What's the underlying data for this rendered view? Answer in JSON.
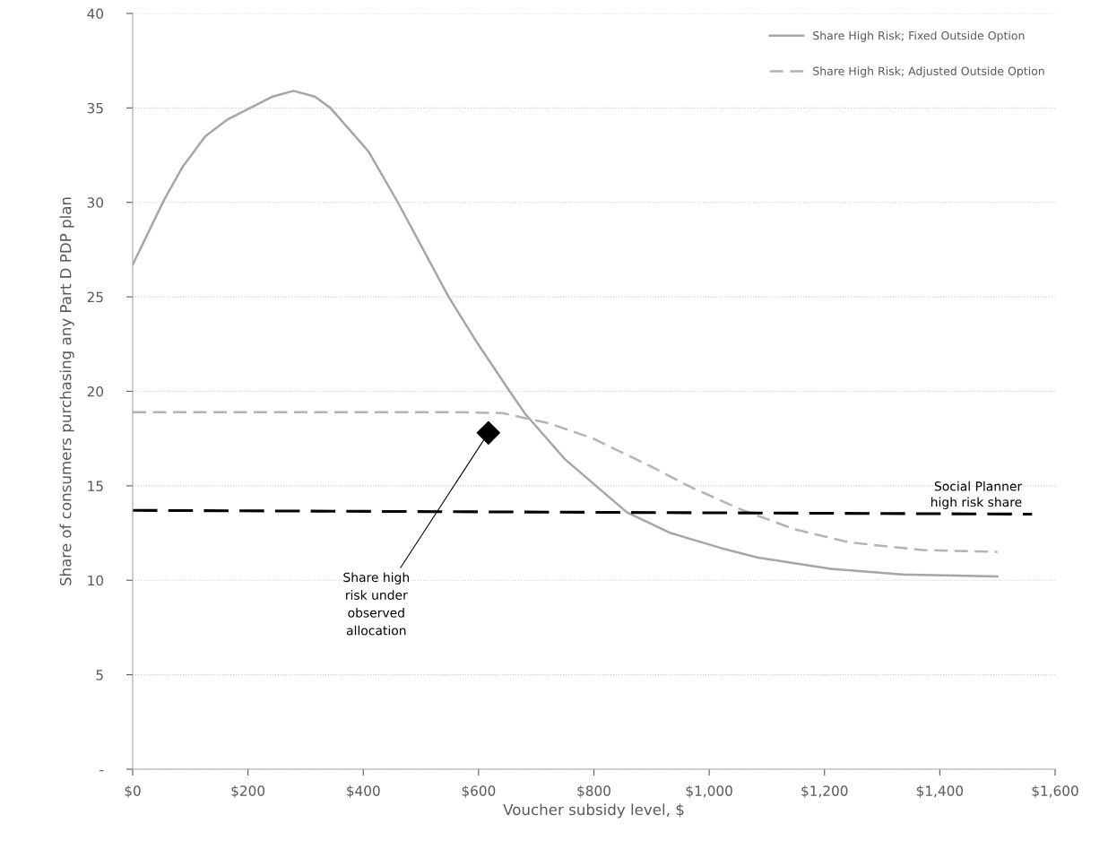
{
  "chart_data": {
    "type": "line",
    "xlabel": "Voucher subsidy level, $",
    "ylabel": "Share of consumers purchasing any Part D PDP plan",
    "xlim": [
      0,
      1600
    ],
    "xticks": [
      {
        "value": 0,
        "label": "$0"
      },
      {
        "value": 200,
        "label": "$200"
      },
      {
        "value": 400,
        "label": "$400"
      },
      {
        "value": 600,
        "label": "$600"
      },
      {
        "value": 800,
        "label": "$800"
      },
      {
        "value": 1000,
        "label": "$1,000"
      },
      {
        "value": 1200,
        "label": "$1,200"
      },
      {
        "value": 1400,
        "label": "$1,400"
      },
      {
        "value": 1600,
        "label": "$1,600"
      }
    ],
    "ylim": [
      0,
      40
    ],
    "yticks": [
      {
        "value": 0,
        "label": "-"
      },
      5,
      10,
      15,
      20,
      25,
      30,
      35,
      40
    ],
    "grid": "y",
    "legend": "top right",
    "series": [
      {
        "name": "Share High Risk; Fixed Outside Option",
        "color": "#a6a6a6",
        "line_style": "solid",
        "x": [
          0,
          54,
          87,
          126,
          165,
          210,
          243,
          279,
          316,
          343,
          409,
          460,
          548,
          599,
          654,
          681,
          750,
          857,
          933,
          1021,
          1085,
          1211,
          1339,
          1500
        ],
        "values": [
          26.7,
          30.1,
          31.9,
          33.5,
          34.4,
          35.1,
          35.6,
          35.9,
          35.6,
          35.0,
          32.7,
          30.0,
          25.0,
          22.5,
          20.0,
          18.8,
          16.4,
          13.6,
          12.5,
          11.7,
          11.2,
          10.6,
          10.3,
          10.2
        ]
      },
      {
        "name": "Share High Risk; Adjusted Outside Option",
        "color": "#b4b4b4",
        "line_style": "dashed",
        "x": [
          0,
          200,
          400,
          560,
          641,
          723,
          799,
          894,
          970,
          1059,
          1148,
          1244,
          1370,
          1500
        ],
        "values": [
          18.9,
          18.9,
          18.9,
          18.9,
          18.85,
          18.3,
          17.5,
          16.1,
          14.9,
          13.7,
          12.7,
          12.0,
          11.6,
          11.5
        ]
      },
      {
        "color": "#000000",
        "line_style": "dashed",
        "x": [
          0,
          1560
        ],
        "values": [
          13.7,
          13.5
        ]
      },
      {
        "type": "scatter",
        "color": "#000000",
        "marker": "diamond",
        "x": [
          617
        ],
        "values": [
          17.8
        ]
      }
    ],
    "annotations": [
      {
        "text": "Social Planner\nhigh risk share",
        "x": 1560,
        "y": 13.5
      },
      {
        "text": "Share high\nrisk under\nobserved\nallocation",
        "x": 617,
        "y": 17.8
      }
    ]
  }
}
